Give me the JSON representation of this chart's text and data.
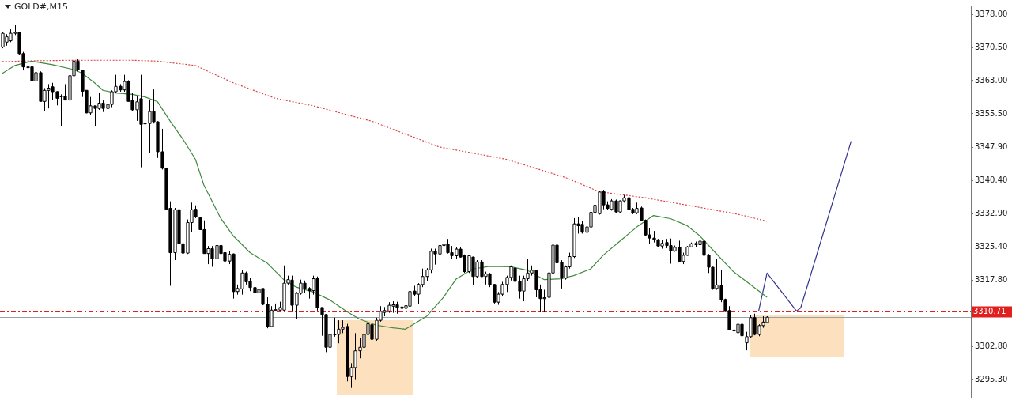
{
  "chart_data": {
    "type": "candlestick",
    "title": "GOLD#,M15",
    "categories": [
      null,
      null,
      null,
      null,
      null,
      null,
      null,
      null,
      null,
      null,
      null,
      null,
      null,
      null,
      null,
      null,
      null,
      null,
      null,
      null,
      null,
      null,
      null,
      null,
      null,
      null,
      null,
      null,
      null,
      null,
      null,
      null,
      null,
      null,
      null,
      null,
      null,
      null,
      null,
      null,
      null,
      null,
      null,
      null,
      null,
      null,
      null,
      null,
      null,
      null,
      null,
      null,
      null,
      null,
      null,
      null,
      null,
      null,
      null,
      null,
      null,
      null,
      null,
      null,
      null,
      null,
      null,
      null,
      null,
      null,
      null,
      null,
      null,
      null,
      null,
      null,
      null,
      null,
      null,
      null,
      null,
      null,
      null,
      null,
      null,
      null,
      null,
      null,
      null,
      null,
      null,
      null,
      null,
      null,
      null,
      null,
      null,
      null,
      null,
      null,
      null,
      null,
      null,
      null,
      null,
      null,
      null,
      null,
      null,
      null,
      null,
      null,
      null,
      null,
      null,
      null,
      null,
      null,
      null,
      null,
      null,
      null,
      null,
      null,
      null,
      null,
      null,
      null,
      null,
      null,
      null,
      null,
      null,
      null,
      null,
      null,
      null,
      null,
      null,
      null,
      null,
      null,
      null,
      null,
      null,
      null,
      null,
      null,
      null,
      null,
      null,
      null,
      null,
      null,
      null,
      null,
      null,
      null,
      null,
      null,
      null,
      null,
      null,
      null,
      null,
      null,
      null,
      null,
      null,
      null,
      null,
      null,
      null,
      null,
      null,
      null,
      null,
      null,
      null,
      null,
      null,
      null,
      null,
      null,
      null,
      null,
      null,
      null,
      null,
      null,
      null,
      null,
      null,
      null,
      null,
      null,
      null,
      null,
      null,
      null,
      null,
      null,
      null,
      null,
      null,
      null,
      null,
      null,
      null,
      null,
      null,
      null,
      null,
      null,
      null,
      null,
      null,
      null,
      null,
      null,
      null,
      null,
      null,
      null,
      null,
      null,
      null,
      null,
      null,
      null,
      null
    ],
    "ohlc": [
      [
        3370.6,
        3374.0,
        3370.3,
        3373.7
      ],
      [
        3371.7,
        3373.5,
        3370.9,
        3372.9
      ],
      [
        3372.0,
        3374.6,
        3371.7,
        3373.7
      ],
      [
        3373.7,
        3375.6,
        3373.3,
        3373.9
      ],
      [
        3373.9,
        3374.0,
        3368.8,
        3369.1
      ],
      [
        3369.1,
        3369.5,
        3365.3,
        3366.1
      ],
      [
        3366.0,
        3366.8,
        3362.2,
        3366.1
      ],
      [
        3366.1,
        3366.8,
        3361.6,
        3362.9
      ],
      [
        3362.9,
        3367.1,
        3362.5,
        3364.8
      ],
      [
        3364.8,
        3365.1,
        3358.3,
        3358.3
      ],
      [
        3358.3,
        3361.3,
        3356.1,
        3360.8
      ],
      [
        3360.8,
        3362.2,
        3356.7,
        3361.3
      ],
      [
        3361.6,
        3362.5,
        3358.7,
        3360.5
      ],
      [
        3360.5,
        3360.6,
        3357.4,
        3359.0
      ],
      [
        3359.5,
        3359.9,
        3352.8,
        3359.4
      ],
      [
        3359.5,
        3362.2,
        3358.5,
        3358.6
      ],
      [
        3358.6,
        3364.9,
        3358.5,
        3364.1
      ],
      [
        3364.1,
        3367.7,
        3363.1,
        3367.4
      ],
      [
        3367.4,
        3367.8,
        3365.1,
        3365.4
      ],
      [
        3365.4,
        3365.4,
        3359.3,
        3360.6
      ],
      [
        3360.8,
        3360.8,
        3355.6,
        3355.7
      ],
      [
        3355.7,
        3359.3,
        3355.3,
        3357.3
      ],
      [
        3357.3,
        3357.3,
        3352.8,
        3356.7
      ],
      [
        3356.7,
        3360.2,
        3356.4,
        3357.9
      ],
      [
        3357.9,
        3358.5,
        3355.9,
        3356.7
      ],
      [
        3356.7,
        3358.5,
        3356.4,
        3357.6
      ],
      [
        3357.6,
        3360.8,
        3357.0,
        3360.5
      ],
      [
        3360.5,
        3364.3,
        3360.2,
        3361.7
      ],
      [
        3361.7,
        3362.2,
        3360.5,
        3360.9
      ],
      [
        3360.9,
        3364.3,
        3360.5,
        3362.8
      ],
      [
        3362.9,
        3363.1,
        3358.3,
        3358.3
      ],
      [
        3358.5,
        3360.2,
        3356.1,
        3356.4
      ],
      [
        3356.4,
        3359.6,
        3353.9,
        3358.2
      ],
      [
        3358.9,
        3364.3,
        3343.4,
        3353.1
      ],
      [
        3353.4,
        3359.3,
        3351.8,
        3353.3
      ],
      [
        3353.3,
        3358.7,
        3346.6,
        3356.0
      ],
      [
        3356.0,
        3361.0,
        3353.3,
        3353.7
      ],
      [
        3353.7,
        3353.8,
        3345.5,
        3346.9
      ],
      [
        3346.9,
        3352.1,
        3342.9,
        3343.2
      ],
      [
        3343.2,
        3343.2,
        3333.9,
        3333.9
      ],
      [
        3334.1,
        3335.7,
        3316.6,
        3324.1
      ],
      [
        3324.1,
        3334.2,
        3322.4,
        3333.8
      ],
      [
        3333.8,
        3333.8,
        3322.4,
        3326.1
      ],
      [
        3326.1,
        3326.4,
        3323.4,
        3324.0
      ],
      [
        3324.0,
        3331.6,
        3323.8,
        3330.9
      ],
      [
        3330.9,
        3335.4,
        3328.7,
        3333.8
      ],
      [
        3333.9,
        3334.8,
        3331.9,
        3332.2
      ],
      [
        3332.0,
        3332.2,
        3329.3,
        3329.3
      ],
      [
        3329.3,
        3331.4,
        3323.9,
        3323.9
      ],
      [
        3323.9,
        3325.6,
        3321.5,
        3325.0
      ],
      [
        3325.0,
        3325.6,
        3320.9,
        3322.7
      ],
      [
        3322.7,
        3326.7,
        3322.4,
        3325.7
      ],
      [
        3325.7,
        3326.2,
        3323.5,
        3323.9
      ],
      [
        3324.1,
        3324.4,
        3321.8,
        3322.2
      ],
      [
        3322.2,
        3324.4,
        3321.5,
        3323.7
      ],
      [
        3323.8,
        3323.9,
        3313.7,
        3315.3
      ],
      [
        3315.3,
        3316.9,
        3314.6,
        3316.0
      ],
      [
        3315.9,
        3320.1,
        3314.6,
        3319.5
      ],
      [
        3319.5,
        3319.8,
        3316.9,
        3317.5
      ],
      [
        3317.6,
        3318.3,
        3315.4,
        3316.2
      ],
      [
        3316.2,
        3317.7,
        3313.7,
        3315.0
      ],
      [
        3315.0,
        3316.3,
        3312.8,
        3315.8
      ],
      [
        3316.0,
        3316.0,
        3312.2,
        3312.4
      ],
      [
        3312.4,
        3314.0,
        3307.0,
        3307.4
      ],
      [
        3307.4,
        3312.0,
        3307.4,
        3311.1
      ],
      [
        3311.1,
        3312.6,
        3310.8,
        3311.2
      ],
      [
        3311.1,
        3313.0,
        3310.8,
        3311.7
      ],
      [
        3311.1,
        3321.2,
        3310.8,
        3317.2
      ],
      [
        3317.2,
        3318.9,
        3316.9,
        3318.0
      ],
      [
        3317.9,
        3318.9,
        3310.8,
        3312.2
      ],
      [
        3312.2,
        3315.2,
        3309.1,
        3314.9
      ],
      [
        3314.9,
        3318.0,
        3314.6,
        3317.2
      ],
      [
        3317.2,
        3317.8,
        3315.0,
        3316.0
      ],
      [
        3316.0,
        3316.3,
        3313.7,
        3315.5
      ],
      [
        3315.5,
        3318.9,
        3314.6,
        3318.2
      ],
      [
        3318.2,
        3318.7,
        3311.0,
        3311.7
      ],
      [
        3311.7,
        3311.7,
        3305.3,
        3310.1
      ],
      [
        3310.1,
        3310.2,
        3301.6,
        3302.7
      ],
      [
        3302.7,
        3305.9,
        3298.1,
        3305.6
      ],
      [
        3305.6,
        3309.4,
        3305.1,
        3305.7
      ],
      [
        3305.6,
        3308.8,
        3303.6,
        3306.8
      ],
      [
        3306.8,
        3308.8,
        3305.9,
        3307.2
      ],
      [
        3307.4,
        3308.0,
        3295.0,
        3296.1
      ],
      [
        3296.1,
        3299.1,
        3293.5,
        3298.1
      ],
      [
        3298.1,
        3305.9,
        3295.3,
        3301.9
      ],
      [
        3301.9,
        3304.8,
        3300.2,
        3302.7
      ],
      [
        3302.7,
        3307.7,
        3302.5,
        3305.6
      ],
      [
        3305.6,
        3308.8,
        3305.1,
        3308.0
      ],
      [
        3307.8,
        3308.0,
        3304.2,
        3304.5
      ],
      [
        3304.5,
        3309.4,
        3304.2,
        3308.8
      ],
      [
        3308.8,
        3312.0,
        3308.5,
        3310.8
      ],
      [
        3310.6,
        3311.8,
        3309.7,
        3311.0
      ],
      [
        3310.9,
        3312.9,
        3310.5,
        3312.2
      ],
      [
        3312.0,
        3313.1,
        3310.5,
        3312.3
      ],
      [
        3312.3,
        3313.0,
        3310.3,
        3311.7
      ],
      [
        3311.8,
        3312.9,
        3309.7,
        3311.5
      ],
      [
        3311.5,
        3312.6,
        3309.9,
        3312.1
      ],
      [
        3312.0,
        3315.4,
        3310.3,
        3315.3
      ],
      [
        3315.4,
        3316.6,
        3314.3,
        3314.7
      ],
      [
        3314.7,
        3317.2,
        3312.4,
        3316.9
      ],
      [
        3316.9,
        3320.5,
        3316.3,
        3318.7
      ],
      [
        3318.7,
        3320.6,
        3317.6,
        3320.2
      ],
      [
        3320.2,
        3325.0,
        3319.5,
        3324.4
      ],
      [
        3324.4,
        3325.0,
        3321.4,
        3323.8
      ],
      [
        3323.8,
        3328.7,
        3323.5,
        3325.7
      ],
      [
        3325.7,
        3326.4,
        3321.5,
        3326.0
      ],
      [
        3326.0,
        3327.2,
        3323.9,
        3324.1
      ],
      [
        3324.1,
        3325.6,
        3322.7,
        3323.4
      ],
      [
        3323.4,
        3325.3,
        3322.7,
        3324.9
      ],
      [
        3324.9,
        3325.4,
        3323.0,
        3323.1
      ],
      [
        3323.5,
        3323.7,
        3319.5,
        3319.8
      ],
      [
        3319.8,
        3323.5,
        3319.5,
        3323.4
      ],
      [
        3323.1,
        3323.2,
        3316.8,
        3318.7
      ],
      [
        3318.7,
        3322.4,
        3318.3,
        3322.0
      ],
      [
        3322.0,
        3322.4,
        3318.6,
        3318.7
      ],
      [
        3318.7,
        3319.8,
        3316.9,
        3319.3
      ],
      [
        3319.3,
        3319.5,
        3316.3,
        3316.8
      ],
      [
        3316.9,
        3317.0,
        3312.6,
        3312.9
      ],
      [
        3312.9,
        3315.2,
        3312.3,
        3314.7
      ],
      [
        3314.7,
        3317.5,
        3314.3,
        3316.9
      ],
      [
        3316.9,
        3318.9,
        3315.2,
        3318.5
      ],
      [
        3318.5,
        3321.2,
        3317.8,
        3320.9
      ],
      [
        3320.6,
        3321.5,
        3313.7,
        3317.6
      ],
      [
        3317.6,
        3318.9,
        3313.7,
        3315.4
      ],
      [
        3315.4,
        3318.9,
        3313.1,
        3318.2
      ],
      [
        3318.2,
        3322.6,
        3317.6,
        3319.5
      ],
      [
        3319.5,
        3321.2,
        3318.9,
        3320.1
      ],
      [
        3320.1,
        3320.1,
        3314.0,
        3315.7
      ],
      [
        3315.7,
        3316.9,
        3310.6,
        3313.7
      ],
      [
        3313.7,
        3315.7,
        3310.6,
        3313.9
      ],
      [
        3314.0,
        3321.6,
        3313.9,
        3319.5
      ],
      [
        3319.5,
        3326.7,
        3319.2,
        3325.8
      ],
      [
        3325.8,
        3326.8,
        3321.5,
        3321.8
      ],
      [
        3321.9,
        3322.4,
        3316.0,
        3318.3
      ],
      [
        3318.3,
        3321.2,
        3318.0,
        3320.9
      ],
      [
        3320.9,
        3324.1,
        3320.5,
        3323.2
      ],
      [
        3323.2,
        3331.9,
        3322.9,
        3330.6
      ],
      [
        3330.6,
        3332.2,
        3328.4,
        3330.2
      ],
      [
        3330.5,
        3331.3,
        3328.4,
        3328.7
      ],
      [
        3328.7,
        3331.0,
        3327.6,
        3329.9
      ],
      [
        3329.9,
        3335.4,
        3329.6,
        3333.2
      ],
      [
        3333.2,
        3335.7,
        3331.9,
        3334.8
      ],
      [
        3332.9,
        3338.0,
        3332.7,
        3337.8
      ],
      [
        3337.9,
        3338.3,
        3333.9,
        3334.9
      ],
      [
        3334.9,
        3335.7,
        3333.8,
        3334.1
      ],
      [
        3333.9,
        3336.2,
        3333.6,
        3335.8
      ],
      [
        3335.8,
        3336.1,
        3333.1,
        3333.3
      ],
      [
        3333.3,
        3335.9,
        3333.1,
        3335.8
      ],
      [
        3335.8,
        3337.1,
        3335.4,
        3336.5
      ],
      [
        3336.5,
        3337.1,
        3333.6,
        3333.8
      ],
      [
        3333.9,
        3334.2,
        3332.8,
        3333.1
      ],
      [
        3333.1,
        3335.4,
        3332.8,
        3334.1
      ],
      [
        3334.2,
        3334.5,
        3331.3,
        3331.4
      ],
      [
        3331.4,
        3331.6,
        3327.9,
        3328.1
      ],
      [
        3328.1,
        3329.7,
        3326.1,
        3327.4
      ],
      [
        3327.4,
        3329.0,
        3326.4,
        3327.0
      ],
      [
        3327.0,
        3327.2,
        3325.4,
        3325.6
      ],
      [
        3325.6,
        3327.0,
        3325.0,
        3326.2
      ],
      [
        3326.4,
        3327.2,
        3325.1,
        3325.7
      ],
      [
        3325.7,
        3327.3,
        3321.6,
        3324.5
      ],
      [
        3324.5,
        3325.7,
        3324.3,
        3325.3
      ],
      [
        3325.3,
        3326.8,
        3322.0,
        3322.1
      ],
      [
        3322.1,
        3324.1,
        3321.5,
        3323.5
      ],
      [
        3323.5,
        3325.6,
        3323.4,
        3325.4
      ],
      [
        3325.4,
        3326.4,
        3325.3,
        3326.1
      ],
      [
        3325.9,
        3326.6,
        3325.4,
        3326.2
      ],
      [
        3325.9,
        3328.1,
        3325.6,
        3326.7
      ],
      [
        3326.7,
        3327.0,
        3320.1,
        3323.5
      ],
      [
        3323.5,
        3323.8,
        3319.5,
        3320.8
      ],
      [
        3320.8,
        3320.9,
        3315.7,
        3316.0
      ],
      [
        3316.0,
        3322.7,
        3315.7,
        3316.8
      ],
      [
        3316.6,
        3320.1,
        3312.9,
        3313.4
      ],
      [
        3313.5,
        3313.7,
        3310.7,
        3310.8
      ],
      [
        3311.0,
        3312.0,
        3306.5,
        3306.6
      ],
      [
        3306.6,
        3307.0,
        3302.7,
        3306.4
      ],
      [
        3306.0,
        3308.2,
        3303.1,
        3307.9
      ],
      [
        3307.9,
        3308.2,
        3304.8,
        3305.3
      ],
      [
        3303.7,
        3306.2,
        3302.0,
        3305.1
      ],
      [
        3305.1,
        3309.9,
        3304.8,
        3309.4
      ],
      [
        3309.4,
        3310.3,
        3305.4,
        3305.6
      ],
      [
        3305.6,
        3307.9,
        3305.2,
        3307.6
      ],
      [
        3307.6,
        3309.7,
        3307.1,
        3308.4
      ],
      [
        3308.3,
        3309.7,
        3308.1,
        3309.5
      ],
      null,
      null,
      null,
      null,
      null,
      null,
      null,
      null,
      null,
      null,
      null,
      null,
      null,
      null,
      null,
      null,
      null,
      null,
      null,
      null,
      null,
      null,
      null,
      null,
      null,
      null,
      null,
      null,
      null,
      null,
      null,
      null,
      null,
      null,
      null,
      null,
      null,
      null,
      null,
      null,
      null,
      null,
      null,
      null,
      null,
      null,
      null,
      null
    ],
    "series": [
      {
        "type": "line",
        "color": "#3f8a3f",
        "line_style": "solid",
        "values": [
          3364.6,
          null,
          null,
          3366.4,
          null,
          null,
          null,
          3367.4,
          null,
          null,
          null,
          null,
          3366.6,
          null,
          null,
          null,
          null,
          3365.5,
          null,
          3364.7,
          null,
          null,
          3362.5,
          null,
          3360.8,
          null,
          null,
          3360.2,
          null,
          null,
          null,
          3359.9,
          null,
          null,
          3359.3,
          null,
          null,
          3358.2,
          null,
          null,
          3353.8,
          null,
          null,
          3349.8,
          null,
          null,
          3345.2,
          null,
          3339.4,
          null,
          null,
          null,
          3331.9,
          null,
          null,
          3327.9,
          null,
          null,
          null,
          3324.1,
          null,
          null,
          null,
          3321.8,
          null,
          null,
          null,
          3318.0,
          null,
          null,
          3316.3,
          null,
          null,
          null,
          3315.2,
          null,
          null,
          null,
          3313.4,
          null,
          null,
          null,
          3310.8,
          null,
          null,
          3309.1,
          null,
          null,
          null,
          3307.7,
          null,
          null,
          null,
          3307.1,
          null,
          null,
          3306.8,
          null,
          null,
          null,
          null,
          3309.7,
          null,
          null,
          null,
          3314.0,
          null,
          null,
          3318.1,
          null,
          null,
          null,
          3320.4,
          null,
          null,
          null,
          3321.0,
          null,
          null,
          null,
          null,
          3320.9,
          null,
          null,
          null,
          3320.1,
          null,
          null,
          null,
          3318.0,
          null,
          null,
          null,
          3318.2,
          null,
          null,
          3318.9,
          null,
          null,
          null,
          3320.4,
          null,
          null,
          3323.5,
          null,
          null,
          null,
          3326.7,
          null,
          null,
          null,
          3329.9,
          null,
          null,
          null,
          3332.5,
          null,
          null,
          null,
          3331.8,
          null,
          null,
          null,
          3330.2,
          null,
          null,
          3327.9,
          null,
          null,
          null,
          3323.8,
          null,
          null,
          null,
          3319.8,
          null,
          null,
          null,
          3316.9,
          null,
          null,
          null,
          3314.0,
          null,
          null,
          null,
          null,
          null,
          null,
          null,
          null,
          null,
          null,
          null,
          null,
          null,
          null,
          null,
          null,
          null,
          null,
          null,
          null,
          null,
          null,
          null,
          null,
          null,
          null,
          null,
          null,
          null,
          null,
          null,
          null,
          null,
          null,
          null,
          null,
          null,
          null,
          null,
          null,
          null,
          null,
          null,
          null,
          null,
          null,
          null,
          null
        ]
      },
      {
        "type": "line",
        "color": "#d9433f",
        "line_style": "dotted",
        "values": [
          3367.3,
          null,
          null,
          null,
          null,
          null,
          null,
          null,
          null,
          3367.5,
          null,
          null,
          null,
          null,
          null,
          null,
          null,
          null,
          3367.6,
          null,
          null,
          null,
          null,
          null,
          null,
          null,
          null,
          null,
          null,
          null,
          null,
          3367.6,
          null,
          null,
          null,
          null,
          null,
          3367.4,
          null,
          null,
          null,
          null,
          null,
          null,
          null,
          null,
          3366.4,
          null,
          null,
          null,
          null,
          null,
          null,
          null,
          null,
          3362.5,
          null,
          null,
          null,
          null,
          null,
          null,
          null,
          null,
          null,
          3359.0,
          null,
          null,
          null,
          null,
          null,
          null,
          null,
          null,
          3357.3,
          null,
          null,
          null,
          null,
          null,
          null,
          null,
          null,
          null,
          null,
          null,
          null,
          null,
          3353.8,
          null,
          null,
          null,
          null,
          null,
          null,
          null,
          null,
          null,
          null,
          null,
          null,
          null,
          null,
          null,
          3348.0,
          null,
          null,
          null,
          null,
          null,
          null,
          null,
          null,
          null,
          null,
          null,
          null,
          null,
          null,
          null,
          3345.2,
          null,
          null,
          null,
          null,
          null,
          null,
          null,
          null,
          null,
          null,
          null,
          null,
          null,
          3341.1,
          null,
          null,
          null,
          null,
          null,
          null,
          null,
          3337.9,
          null,
          null,
          null,
          null,
          null,
          null,
          null,
          null,
          null,
          null,
          3336.5,
          null,
          null,
          null,
          null,
          null,
          null,
          null,
          null,
          null,
          null,
          null,
          3334.5,
          null,
          null,
          null,
          null,
          null,
          null,
          null,
          null,
          null,
          3332.8,
          null,
          null,
          null,
          null,
          null,
          null,
          3331.2,
          null,
          null,
          null,
          null,
          null,
          null,
          null,
          null,
          null,
          null,
          null,
          null,
          null,
          null,
          null,
          null,
          null,
          null,
          null,
          null,
          null,
          null,
          null,
          null,
          null,
          null,
          null,
          null,
          null,
          null,
          null,
          null,
          null,
          null,
          null,
          null,
          null,
          null,
          null,
          null,
          null,
          null,
          null,
          null,
          null,
          null,
          null,
          null
        ]
      },
      {
        "type": "line",
        "color": "#33338f",
        "line_style": "solid",
        "values": [
          null,
          null,
          null,
          null,
          null,
          null,
          null,
          null,
          null,
          null,
          null,
          null,
          null,
          null,
          null,
          null,
          null,
          null,
          null,
          null,
          null,
          null,
          null,
          null,
          null,
          null,
          null,
          null,
          null,
          null,
          null,
          null,
          null,
          null,
          null,
          null,
          null,
          null,
          null,
          null,
          null,
          null,
          null,
          null,
          null,
          null,
          null,
          null,
          null,
          null,
          null,
          null,
          null,
          null,
          null,
          null,
          null,
          null,
          null,
          null,
          null,
          null,
          null,
          null,
          null,
          null,
          null,
          null,
          null,
          null,
          null,
          null,
          null,
          null,
          null,
          null,
          null,
          null,
          null,
          null,
          null,
          null,
          null,
          null,
          null,
          null,
          null,
          null,
          null,
          null,
          null,
          null,
          null,
          null,
          null,
          null,
          null,
          null,
          null,
          null,
          null,
          null,
          null,
          null,
          null,
          null,
          null,
          null,
          null,
          null,
          null,
          null,
          null,
          null,
          null,
          null,
          null,
          null,
          null,
          null,
          null,
          null,
          null,
          null,
          null,
          null,
          null,
          null,
          null,
          null,
          null,
          null,
          null,
          null,
          null,
          null,
          null,
          null,
          null,
          null,
          null,
          null,
          null,
          null,
          null,
          null,
          null,
          null,
          null,
          null,
          null,
          null,
          null,
          null,
          null,
          null,
          null,
          null,
          null,
          null,
          null,
          null,
          null,
          null,
          null,
          null,
          null,
          null,
          null,
          null,
          null,
          null,
          null,
          null,
          null,
          null,
          null,
          null,
          null,
          null,
          3310.9,
          null,
          3319.5,
          null,
          null,
          null,
          null,
          null,
          null,
          3310.9,
          3311.6,
          null,
          null,
          null,
          null,
          null,
          null,
          null,
          null,
          null,
          null,
          null,
          3349.3,
          null,
          null,
          null,
          null,
          null,
          null,
          null,
          null,
          null,
          null,
          null,
          null,
          null,
          null,
          null,
          null,
          null,
          null,
          null,
          null,
          null,
          null,
          null,
          null,
          null,
          null,
          null,
          null
        ]
      }
    ],
    "ylim": [
      3291.3,
      3379.8
    ],
    "yticks": [
      {
        "value": 3378,
        "label": "3378.00"
      },
      {
        "value": 3370.5,
        "label": "3370.50"
      },
      {
        "value": 3363,
        "label": "3363.00"
      },
      {
        "value": 3355.5,
        "label": "3355.50"
      },
      {
        "value": 3347.9,
        "label": "3347.90"
      },
      {
        "value": 3340.4,
        "label": "3340.40"
      },
      {
        "value": 3332.9,
        "label": "3332.90"
      },
      {
        "value": 3325.4,
        "label": "3325.40"
      },
      {
        "value": 3317.8,
        "label": "3317.80"
      },
      {
        "value": 3302.8,
        "label": "3302.80"
      },
      {
        "value": 3295.3,
        "label": "3295.30"
      }
    ],
    "ref_lines": [
      {
        "axis": "y",
        "value": 3309.6,
        "color": "#9aa0a0",
        "line_style": "solid"
      },
      {
        "axis": "y",
        "value": 3310.71,
        "label": "3310.71",
        "color": "#e0201e",
        "line_style": "dashed"
      }
    ],
    "tick_labels": "y",
    "marker": "none",
    "grid": false,
    "legend": false
  }
}
